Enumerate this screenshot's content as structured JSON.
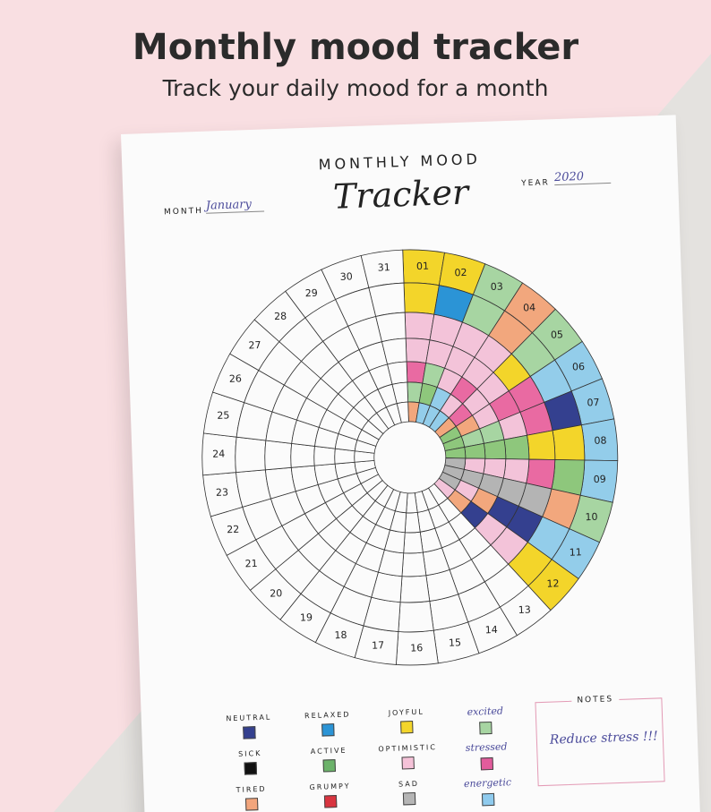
{
  "header": {
    "title": "Monthly mood tracker",
    "subtitle": "Track your daily mood for a month"
  },
  "tracker": {
    "heading": "MONTHLY MOOD",
    "script_title": "Tracker",
    "month_label": "MONTH",
    "month": "January",
    "year_label": "YEAR",
    "year": "2020",
    "days": [
      {
        "label": "01",
        "cells": [
          "#f3d52a",
          "#f3d52a",
          "#f3c3d9",
          "#f3c3d9",
          "#e96aa2",
          "#a7d5a2",
          "#f2a77d"
        ]
      },
      {
        "label": "02",
        "cells": [
          "#f3d52a",
          "#2b94d6",
          "#f3c3d9",
          "#f3c3d9",
          "#a7d5a2",
          "#8ec77c",
          "#93cdea"
        ]
      },
      {
        "label": "03",
        "cells": [
          "#a7d5a2",
          "#a7d5a2",
          "#f3c3d9",
          "#f3c3d9",
          "#f3c3d9",
          "#93cdea",
          "#93cdea"
        ]
      },
      {
        "label": "04",
        "cells": [
          "#f2a77d",
          "#f2a77d",
          "#f3c3d9",
          "#f3c3d9",
          "#e96aa2",
          "#f3c3d9",
          "#93cdea"
        ]
      },
      {
        "label": "05",
        "cells": [
          "#a7d5a2",
          "#a7d5a2",
          "#f3d52a",
          "#f3c3d9",
          "#f3c3d9",
          "#e96aa2",
          "#f2a77d"
        ]
      },
      {
        "label": "06",
        "cells": [
          "#93cdea",
          "#93cdea",
          "#e96aa2",
          "#e96aa2",
          "#f3c3d9",
          "#f2a77d",
          "#8ec77c"
        ]
      },
      {
        "label": "07",
        "cells": [
          "#93cdea",
          "#34408f",
          "#e96aa2",
          "#f3c3d9",
          "#a7d5a2",
          "#a7d5a2",
          "#8ec77c"
        ]
      },
      {
        "label": "08",
        "cells": [
          "#93cdea",
          "#f3d52a",
          "#f3d52a",
          "#8ec77c",
          "#8ec77c",
          "#8ec77c",
          "#8ec77c"
        ]
      },
      {
        "label": "09",
        "cells": [
          "#93cdea",
          "#8ec77c",
          "#e96aa2",
          "#f3c3d9",
          "#f3c3d9",
          "#f3c3d9",
          "#b4b4b4"
        ]
      },
      {
        "label": "10",
        "cells": [
          "#a7d5a2",
          "#f2a77d",
          "#b4b4b4",
          "#b4b4b4",
          "#b4b4b4",
          "#b4b4b4",
          "#b4b4b4"
        ]
      },
      {
        "label": "11",
        "cells": [
          "#93cdea",
          "#93cdea",
          "#34408f",
          "#34408f",
          "#f2a77d",
          "#f3c3d9",
          "#b4b4b4"
        ]
      },
      {
        "label": "12",
        "cells": [
          "#f3d52a",
          "#f3d52a",
          "#f3c3d9",
          "#f3c3d9",
          "#34408f",
          "#f2a77d",
          "#f3c3d9"
        ]
      },
      {
        "label": "13"
      },
      {
        "label": "14"
      },
      {
        "label": "15"
      },
      {
        "label": "16"
      },
      {
        "label": "17"
      },
      {
        "label": "18"
      },
      {
        "label": "19"
      },
      {
        "label": "20"
      },
      {
        "label": "21"
      },
      {
        "label": "22"
      },
      {
        "label": "23"
      },
      {
        "label": "24"
      },
      {
        "label": "25"
      },
      {
        "label": "26"
      },
      {
        "label": "27"
      },
      {
        "label": "28"
      },
      {
        "label": "29"
      },
      {
        "label": "30"
      },
      {
        "label": "31"
      }
    ]
  },
  "legend": [
    {
      "label": "NEUTRAL",
      "color": "#34408f"
    },
    {
      "label": "RELAXED",
      "color": "#2b94d6"
    },
    {
      "label": "JOYFUL",
      "color": "#f3d52a"
    },
    {
      "label": "excited",
      "color": "#a7d5a2"
    },
    {
      "label": "SICK",
      "color": "#111111"
    },
    {
      "label": "ACTIVE",
      "color": "#6cb36a"
    },
    {
      "label": "OPTIMISTIC",
      "color": "#f5c2d8"
    },
    {
      "label": "stressed",
      "color": "#e25c9c"
    },
    {
      "label": "TIRED",
      "color": "#f2a57c"
    },
    {
      "label": "GRUMPY",
      "color": "#d9343f"
    },
    {
      "label": "SAD",
      "color": "#b5b5b5"
    },
    {
      "label": "energetic",
      "color": "#8fcbee"
    }
  ],
  "notes": {
    "title": "NOTES",
    "text": "Reduce stress !!!"
  }
}
